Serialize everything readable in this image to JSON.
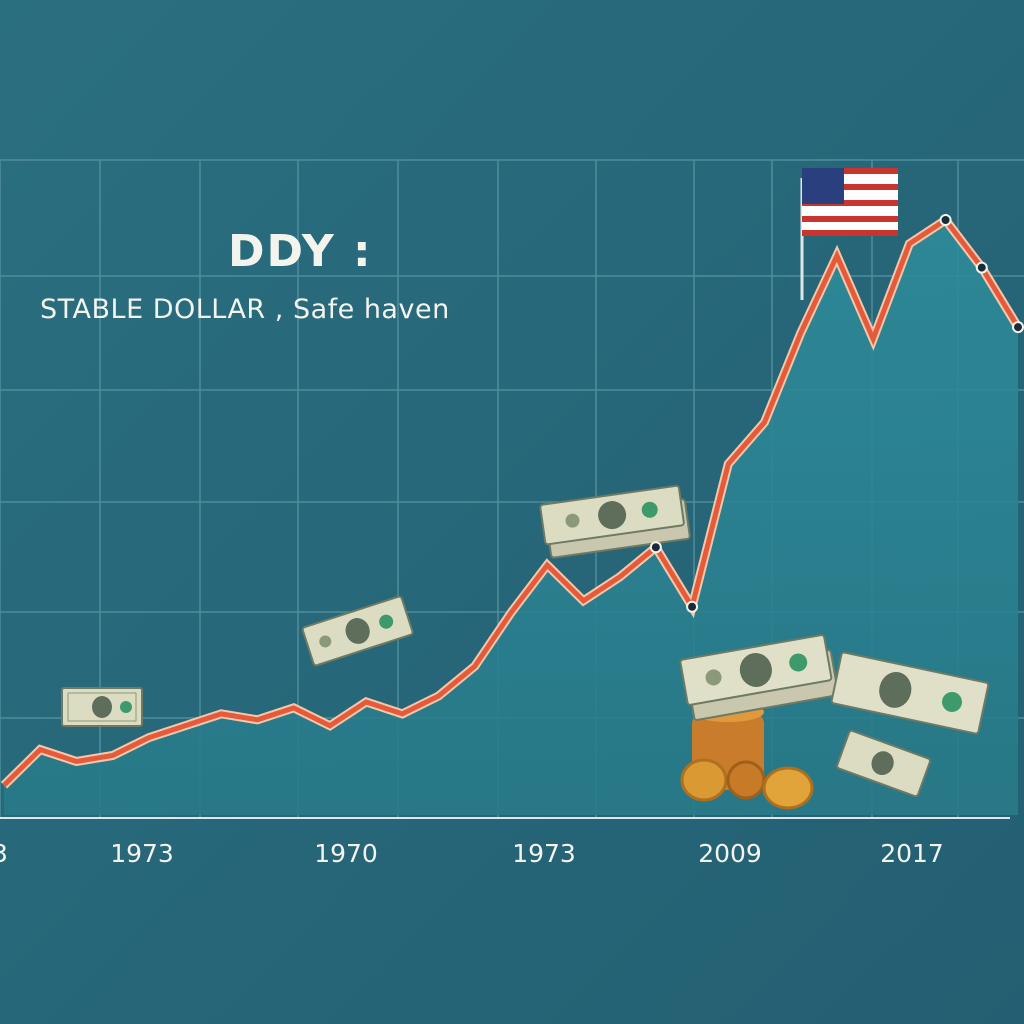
{
  "chart_data": {
    "type": "line",
    "title": "DDY :",
    "subtitle": "STABLE DOLLAR , Safe haven",
    "x_tick_labels": [
      "3",
      "1973",
      "1970",
      "1973",
      "2009",
      "2017"
    ],
    "series": [
      {
        "color": "#e65a3c",
        "values": [
          5,
          11,
          9,
          10,
          13,
          15,
          17,
          16,
          18,
          15,
          19,
          17,
          20,
          25,
          34,
          42,
          36,
          40,
          45,
          35,
          59,
          66,
          81,
          94,
          80,
          96,
          100,
          92,
          82
        ]
      }
    ],
    "grid": true,
    "legend": "none",
    "colors": {
      "background": "#276a7c",
      "area": "#2c8494",
      "line": "#e65a3c",
      "text": "#f4f4ee"
    },
    "icons": [
      "us-flag-icon",
      "dollar-bill-icon",
      "coin-stack-icon"
    ]
  }
}
